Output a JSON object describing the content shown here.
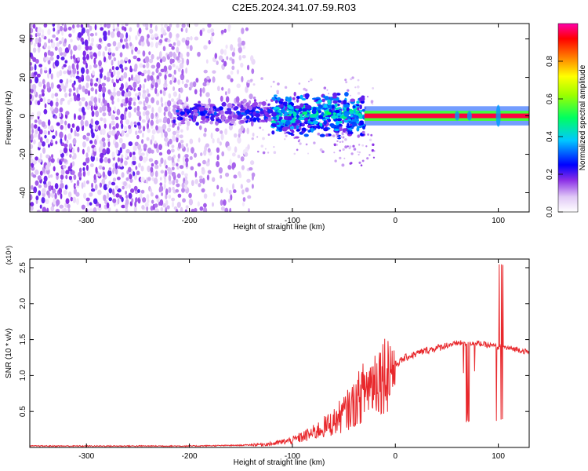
{
  "title": "C2E5.2024.341.07.59.R03",
  "colors": {
    "spectrogram_palette": [
      "#ffffff",
      "#e8d4f4",
      "#b266f0",
      "#6a00e0",
      "#0000ff",
      "#00c8ff",
      "#00ff60",
      "#9cff00",
      "#ffff00",
      "#ff8000",
      "#ff0000",
      "#ff00aa"
    ],
    "snr_line": "#e8282c"
  },
  "chart_data": [
    {
      "type": "heatmap",
      "xlabel": "Height of straight line (km)",
      "ylabel": "Frequency (Hz)",
      "xlim": [
        -355,
        130
      ],
      "ylim": [
        -50,
        48
      ],
      "x_ticks": [
        -300,
        -200,
        -100,
        0,
        100
      ],
      "x_tick_labels": [
        "-300",
        "-200",
        "-100",
        "0",
        "100"
      ],
      "y_ticks": [
        -40,
        -20,
        0,
        20,
        40
      ],
      "y_tick_labels": [
        "-40",
        "-20",
        "0",
        "20",
        "40"
      ],
      "colorbar": {
        "label": "Normalized spectral amplitude",
        "range": [
          0,
          1
        ],
        "ticks": [
          0,
          0.2,
          0.4,
          0.6,
          0.8
        ],
        "tick_labels": [
          "0.0",
          "0.2",
          "0.4",
          "0.6",
          "0.8"
        ]
      },
      "features": [
        {
          "x_range": [
            -355,
            -140
          ],
          "freq_range": [
            -50,
            48
          ],
          "amplitude": 0.12,
          "description": "broadband noise"
        },
        {
          "x_range": [
            -215,
            -120
          ],
          "freq_range": [
            -5,
            8
          ],
          "amplitude": 0.25
        },
        {
          "x_range": [
            -120,
            -30
          ],
          "freq_range": [
            -12,
            12
          ],
          "amplitude": 0.4
        },
        {
          "x_range": [
            -30,
            130
          ],
          "freq_range": [
            -2,
            2
          ],
          "amplitude": 0.95
        }
      ]
    },
    {
      "type": "line",
      "xlabel": "Height of straight line (km)",
      "ylabel": "SNR (10 * v/v)",
      "y_multiplier": "(x10⁴)",
      "xlim": [
        -355,
        130
      ],
      "ylim": [
        0,
        2.62
      ],
      "x_ticks": [
        -300,
        -200,
        -100,
        0,
        100
      ],
      "x_tick_labels": [
        "-300",
        "-200",
        "-100",
        "0",
        "100"
      ],
      "y_ticks": [
        0.5,
        1.0,
        1.5,
        2.0,
        2.5
      ],
      "y_tick_labels": [
        "0.5",
        "1.0",
        "1.5",
        "2.0",
        "2.5"
      ],
      "series": [
        {
          "x": [
            -355,
            -300,
            -250,
            -200,
            -150,
            -120,
            -100,
            -80,
            -60,
            -40,
            -30,
            -20,
            -10,
            0,
            10,
            20,
            30,
            40,
            50,
            60,
            70,
            80,
            90,
            100,
            110,
            120,
            130
          ],
          "y": [
            0.02,
            0.02,
            0.02,
            0.02,
            0.03,
            0.05,
            0.1,
            0.2,
            0.35,
            0.6,
            0.8,
            0.95,
            1.05,
            1.15,
            1.25,
            1.3,
            1.35,
            1.38,
            1.42,
            1.45,
            1.45,
            1.45,
            1.42,
            1.4,
            1.38,
            1.36,
            1.32
          ]
        }
      ]
    }
  ]
}
